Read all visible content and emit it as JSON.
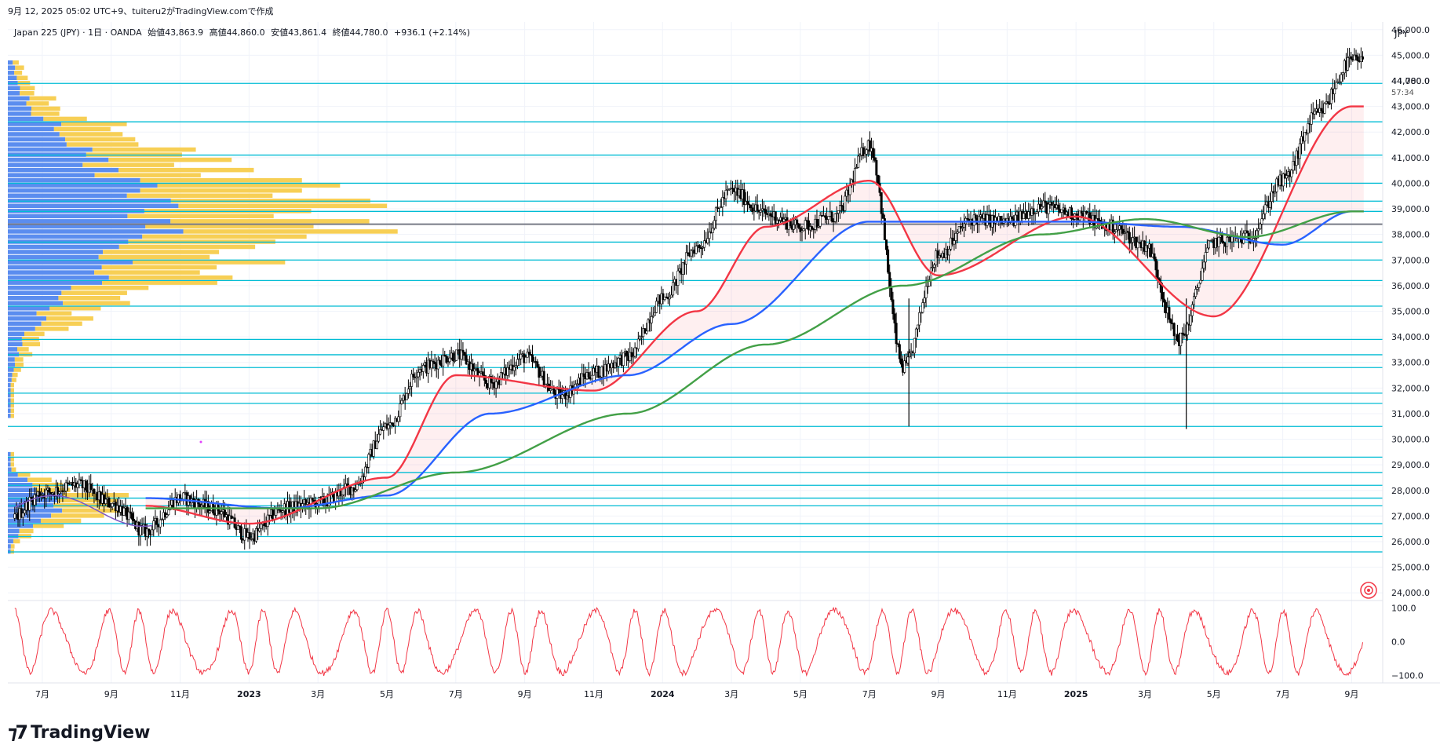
{
  "header": {
    "caption": "9月 12, 2025 05:02 UTC+9、tuiteru2がTradingView.comで作成",
    "symbol": "Japan 225 (JPY) · 1日 · OANDA",
    "open": "始値43,863.9",
    "high": "高値44,860.0",
    "low": "安値43,861.4",
    "close": "終値44,780.0",
    "change": "+936.1 (+2.14%)"
  },
  "price_axis": {
    "currency": "JPY",
    "last_price": "44,780.0",
    "countdown": "57:34"
  },
  "footer": {
    "brand": "TradingView"
  },
  "colors": {
    "candle": "#000000",
    "ma_red": "#f23645",
    "ma_blue": "#2962ff",
    "ma_green": "#43a047",
    "hline": "#00bcd4",
    "vp_blue": "#5b8def",
    "vp_yellow": "#f7cf55",
    "oscillator": "#f23645"
  },
  "chart_data": [
    {
      "type": "candlestick",
      "title": "Japan 225 (JPY) · 1日 · OANDA",
      "xlabel": "",
      "ylabel": "",
      "x_tick_labels": [
        "7月",
        "9月",
        "11月",
        "2023",
        "3月",
        "5月",
        "7月",
        "9月",
        "11月",
        "2024",
        "3月",
        "5月",
        "7月",
        "9月",
        "11月",
        "2025",
        "3月",
        "5月",
        "7月",
        "9月"
      ],
      "y_tick_labels": [
        "46,000.0",
        "45,000.0",
        "44,000.0",
        "43,000.0",
        "42,000.0",
        "41,000.0",
        "40,000.0",
        "39,000.0",
        "38,000.0",
        "37,000.0",
        "36,000.0",
        "35,000.0",
        "34,000.0",
        "33,000.0",
        "32,000.0",
        "31,000.0",
        "30,000.0",
        "29,000.0",
        "28,000.0",
        "27,000.0",
        "26,000.0",
        "25,000.0",
        "24,000.0"
      ],
      "ylim": [
        23700,
        46300
      ],
      "series": [
        {
          "name": "",
          "approx_path": [
            [
              "2022-06",
              26800
            ],
            [
              "2022-07",
              27900
            ],
            [
              "2022-08",
              28200
            ],
            [
              "2022-09",
              27500
            ],
            [
              "2022-10",
              26400
            ],
            [
              "2022-11",
              27700
            ],
            [
              "2022-12",
              27300
            ],
            [
              "2023-01",
              26200
            ],
            [
              "2023-02",
              27300
            ],
            [
              "2023-03",
              27500
            ],
            [
              "2023-04",
              28100
            ],
            [
              "2023-05",
              30500
            ],
            [
              "2023-06",
              32800
            ],
            [
              "2023-07",
              33300
            ],
            [
              "2023-08",
              32200
            ],
            [
              "2023-09",
              33200
            ],
            [
              "2023-10",
              31700
            ],
            [
              "2023-11",
              32600
            ],
            [
              "2023-12",
              33200
            ],
            [
              "2024-01",
              35500
            ],
            [
              "2024-02",
              37500
            ],
            [
              "2024-03",
              39700
            ],
            [
              "2024-04",
              38800
            ],
            [
              "2024-05",
              38300
            ],
            [
              "2024-06",
              38700
            ],
            [
              "2024-07",
              41500
            ],
            [
              "2024-08",
              32800
            ],
            [
              "2024-09",
              37200
            ],
            [
              "2024-10",
              38600
            ],
            [
              "2024-11",
              38500
            ],
            [
              "2024-12",
              39100
            ],
            [
              "2025-01",
              38800
            ],
            [
              "2025-02",
              38300
            ],
            [
              "2025-03",
              37600
            ],
            [
              "2025-04",
              33900
            ],
            [
              "2025-05",
              37700
            ],
            [
              "2025-06",
              37900
            ],
            [
              "2025-07",
              40100
            ],
            [
              "2025-08",
              42700
            ],
            [
              "2025-09",
              44780
            ]
          ]
        },
        {
          "name": "",
          "type": "line",
          "color_key": "ma_red",
          "approx_path": [
            [
              "2022-10",
              27400
            ],
            [
              "2023-01",
              26700
            ],
            [
              "2023-05",
              28500
            ],
            [
              "2023-07",
              32500
            ],
            [
              "2023-11",
              31900
            ],
            [
              "2024-02",
              35000
            ],
            [
              "2024-04",
              38300
            ],
            [
              "2024-07",
              40100
            ],
            [
              "2024-09",
              36400
            ],
            [
              "2025-01",
              38700
            ],
            [
              "2025-05",
              34800
            ],
            [
              "2025-09",
              43000
            ]
          ]
        },
        {
          "name": "",
          "type": "line",
          "color_key": "ma_blue",
          "approx_path": [
            [
              "2022-10",
              27700
            ],
            [
              "2023-02",
              27300
            ],
            [
              "2023-05",
              27800
            ],
            [
              "2023-08",
              31000
            ],
            [
              "2023-12",
              32500
            ],
            [
              "2024-03",
              34500
            ],
            [
              "2024-07",
              38500
            ],
            [
              "2024-09",
              38500
            ],
            [
              "2025-01",
              38500
            ],
            [
              "2025-04",
              38300
            ],
            [
              "2025-07",
              37600
            ],
            [
              "2025-09",
              38900
            ]
          ]
        },
        {
          "name": "",
          "type": "line",
          "color_key": "ma_green",
          "approx_path": [
            [
              "2022-10",
              27300
            ],
            [
              "2023-03",
              27300
            ],
            [
              "2023-07",
              28700
            ],
            [
              "2023-12",
              31000
            ],
            [
              "2024-04",
              33700
            ],
            [
              "2024-08",
              36000
            ],
            [
              "2024-12",
              38000
            ],
            [
              "2025-03",
              38600
            ],
            [
              "2025-06",
              37900
            ],
            [
              "2025-09",
              38900
            ]
          ]
        }
      ],
      "horizontal_levels": [
        25600,
        26200,
        26700,
        27400,
        27700,
        28200,
        28700,
        29300,
        30500,
        31400,
        31800,
        32800,
        33300,
        33900,
        35200,
        36200,
        37000,
        37700,
        38400,
        38900,
        39300,
        40000,
        41100,
        42400,
        43900
      ],
      "volume_profile": "on",
      "legend": "none",
      "grid": true
    },
    {
      "type": "line",
      "title": "",
      "xlabel": "",
      "ylabel": "",
      "y_tick_labels": [
        "100.0",
        "0.0",
        "−100.0"
      ],
      "ylim": [
        -110,
        110
      ],
      "series": [
        {
          "name": "",
          "color_key": "oscillator",
          "description": "oscillator swinging between about -100 and 100"
        }
      ]
    }
  ]
}
